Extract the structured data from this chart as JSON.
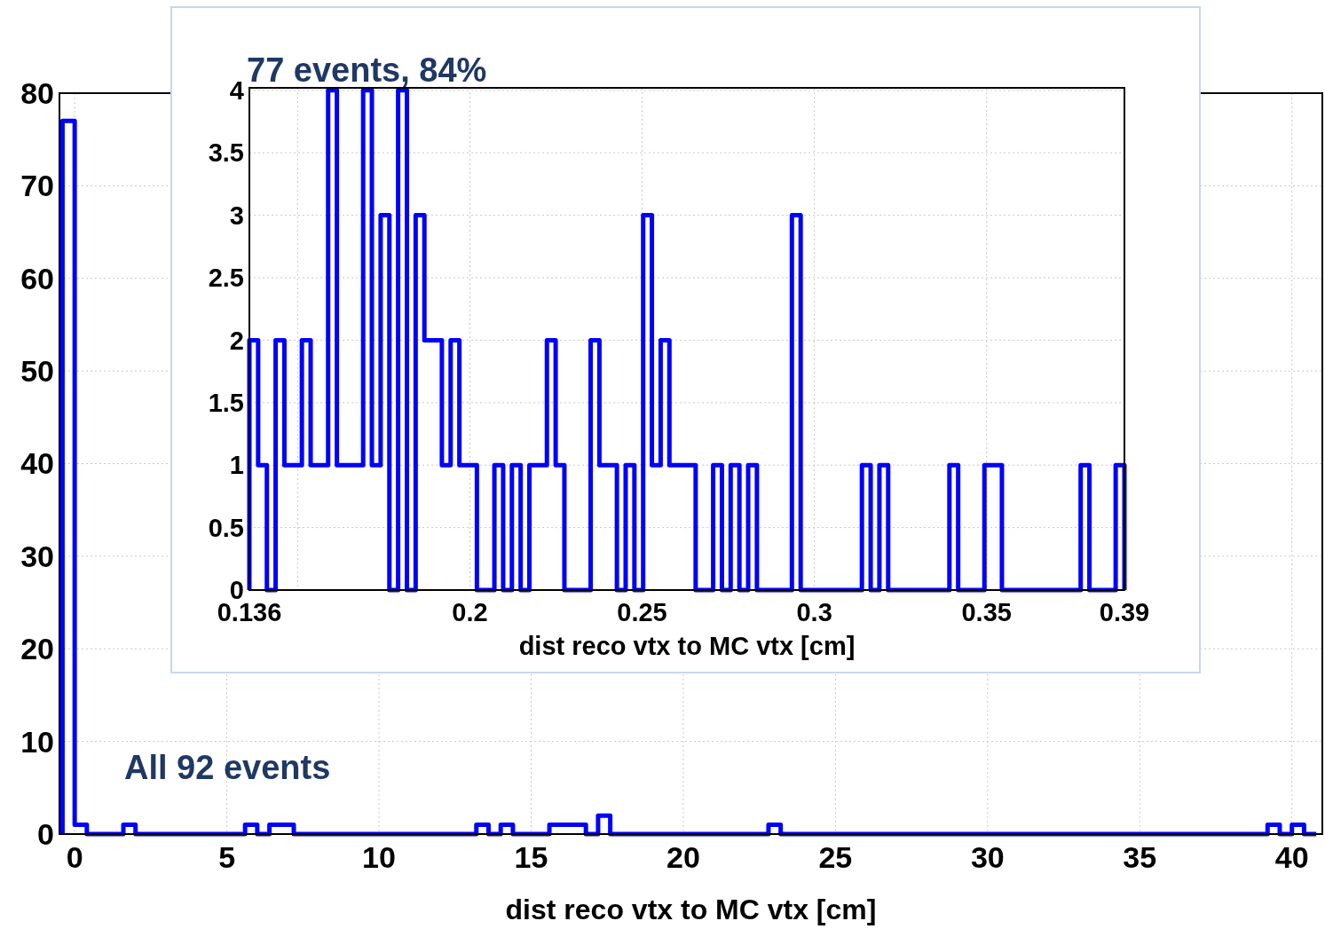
{
  "chart_data": [
    {
      "type": "histogram",
      "xlabel": "dist reco vtx to MC vtx [cm]",
      "annotations": [
        "All 92 events"
      ],
      "color": "#0000ff",
      "grid": true,
      "xlim": [
        -0.5,
        41
      ],
      "ylim": [
        0,
        80
      ],
      "xticks": [
        0,
        5,
        10,
        15,
        20,
        25,
        30,
        35,
        40
      ],
      "yticks": [
        0,
        10,
        20,
        30,
        40,
        50,
        60,
        70,
        80
      ],
      "bins": [
        -0.4,
        0,
        0.4,
        0.8,
        1.2,
        1.6,
        2,
        2.4,
        2.8,
        3.2,
        3.6,
        4,
        4.4,
        4.8,
        5.2,
        5.6,
        6,
        6.4,
        6.8,
        7.2,
        7.6,
        8,
        8.4,
        8.8,
        9.2,
        9.6,
        10,
        10.4,
        10.8,
        11.2,
        11.6,
        12,
        12.4,
        12.8,
        13.2,
        13.6,
        14,
        14.4,
        14.8,
        15.2,
        15.6,
        16,
        16.4,
        16.8,
        17.2,
        17.6,
        18,
        18.4,
        18.8,
        19.2,
        19.6,
        20,
        20.4,
        20.8,
        21.2,
        21.6,
        22,
        22.4,
        22.8,
        23.2,
        23.6,
        24,
        24.4,
        24.8,
        25.2,
        25.6,
        26,
        26.4,
        26.8,
        27.2,
        27.6,
        28,
        28.4,
        28.8,
        29.2,
        29.6,
        30,
        30.4,
        30.8,
        31.2,
        31.6,
        32,
        32.4,
        32.8,
        33.2,
        33.6,
        34,
        34.4,
        34.8,
        35.2,
        35.6,
        36,
        36.4,
        36.8,
        37.2,
        37.6,
        38,
        38.4,
        38.8,
        39.2,
        39.6,
        40,
        40.4,
        40.8
      ],
      "values": [
        77,
        1,
        0,
        0,
        0,
        1,
        0,
        0,
        0,
        0,
        0,
        0,
        0,
        0,
        0,
        1,
        0,
        1,
        1,
        0,
        0,
        0,
        0,
        0,
        0,
        0,
        0,
        0,
        0,
        0,
        0,
        0,
        0,
        0,
        1,
        0,
        1,
        0,
        0,
        0,
        1,
        1,
        1,
        0,
        2,
        0,
        0,
        0,
        0,
        0,
        0,
        0,
        0,
        0,
        0,
        0,
        0,
        0,
        1,
        0,
        0,
        0,
        0,
        0,
        0,
        0,
        0,
        0,
        0,
        0,
        0,
        0,
        0,
        0,
        0,
        0,
        0,
        0,
        0,
        0,
        0,
        0,
        0,
        0,
        0,
        0,
        0,
        0,
        0,
        0,
        0,
        0,
        0,
        0,
        0,
        0,
        0,
        0,
        0,
        1,
        0,
        1,
        0
      ]
    },
    {
      "type": "histogram",
      "title": "77 events, 84%",
      "xlabel": "dist reco vtx to MC vtx [cm]",
      "color": "#0000ff",
      "grid": true,
      "xlim": [
        0.136,
        0.39
      ],
      "ylim": [
        0,
        4.02
      ],
      "xticks": [
        0.136,
        {
          "value": 0.15,
          "label": null
        },
        0.2,
        0.25,
        0.3,
        0.35,
        0.39
      ],
      "yticks": [
        0,
        0.5,
        1,
        1.5,
        2,
        2.5,
        3,
        3.5,
        4
      ],
      "bins": [
        0.136,
        0.13854,
        0.14108,
        0.14362,
        0.14616,
        0.1487,
        0.15124,
        0.15378,
        0.15632,
        0.15886,
        0.1614,
        0.16394,
        0.16648,
        0.16902,
        0.17156,
        0.1741,
        0.17664,
        0.17918,
        0.18172,
        0.18426,
        0.1868,
        0.18934,
        0.19188,
        0.19442,
        0.19696,
        0.1995,
        0.20204,
        0.20458,
        0.20712,
        0.20966,
        0.2122,
        0.21474,
        0.21728,
        0.21982,
        0.22236,
        0.2249,
        0.22744,
        0.22998,
        0.23252,
        0.23506,
        0.2376,
        0.24014,
        0.24268,
        0.24522,
        0.24776,
        0.2503,
        0.25284,
        0.25538,
        0.25792,
        0.26046,
        0.263,
        0.26554,
        0.26808,
        0.27062,
        0.27316,
        0.2757,
        0.27824,
        0.28078,
        0.28332,
        0.28586,
        0.2884,
        0.29094,
        0.29348,
        0.29602,
        0.29856,
        0.3011,
        0.30364,
        0.30618,
        0.30872,
        0.31126,
        0.3138,
        0.31634,
        0.31888,
        0.32142,
        0.32396,
        0.3265,
        0.32904,
        0.33158,
        0.33412,
        0.33666,
        0.3392,
        0.34174,
        0.34428,
        0.34682,
        0.34936,
        0.3519,
        0.35444,
        0.35698,
        0.35952,
        0.36206,
        0.3646,
        0.36714,
        0.36968,
        0.37222,
        0.37476,
        0.3773,
        0.37984,
        0.38238,
        0.38492,
        0.38746,
        0.39
      ],
      "values": [
        2,
        1,
        0,
        2,
        1,
        1,
        2,
        1,
        1,
        4,
        1,
        1,
        1,
        4,
        1,
        3,
        0,
        4,
        0,
        3,
        2,
        2,
        1,
        2,
        1,
        1,
        0,
        0,
        1,
        0,
        1,
        0,
        1,
        1,
        2,
        1,
        0,
        0,
        0,
        2,
        1,
        1,
        0,
        1,
        0,
        3,
        1,
        2,
        1,
        1,
        1,
        0,
        0,
        1,
        0,
        1,
        0,
        1,
        0,
        0,
        0,
        0,
        3,
        0,
        0,
        0,
        0,
        0,
        0,
        0,
        1,
        0,
        1,
        0,
        0,
        0,
        0,
        0,
        0,
        0,
        1,
        0,
        0,
        0,
        1,
        1,
        0,
        0,
        0,
        0,
        0,
        0,
        0,
        0,
        0,
        1,
        0,
        0,
        0,
        1
      ]
    }
  ]
}
